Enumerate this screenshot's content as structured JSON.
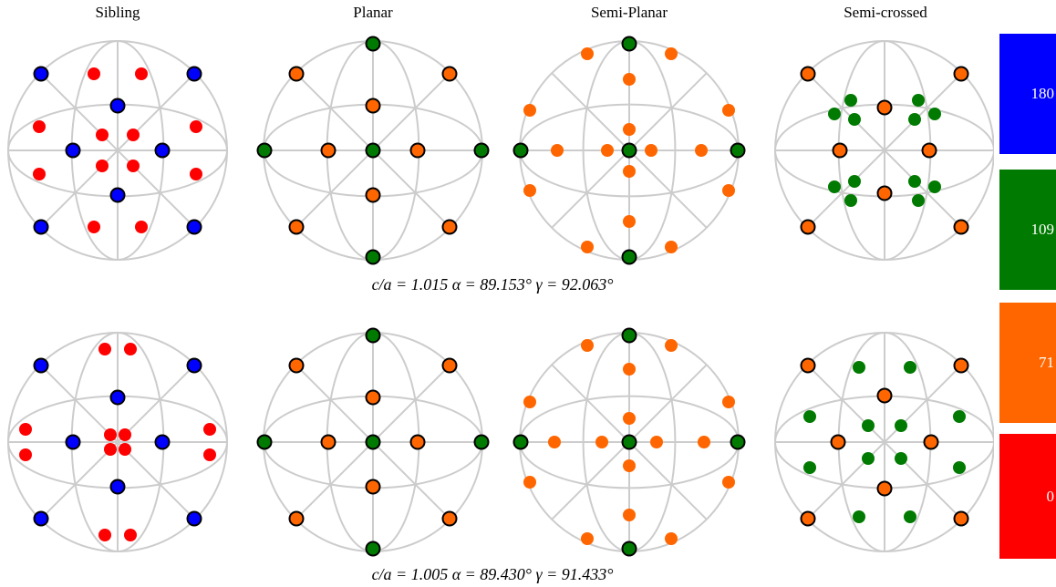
{
  "columns": [
    "Sibling",
    "Planar",
    "Semi-Planar",
    "Semi-crossed"
  ],
  "captions": [
    "c/a = 1.015  α = 89.153°  γ = 92.063°",
    "c/a = 1.005  α = 89.430°  γ = 91.433°"
  ],
  "legend": [
    {
      "label": "180",
      "color": "#0000ff"
    },
    {
      "label": "109",
      "color": "#007a00"
    },
    {
      "label": "71",
      "color": "#ff6600"
    },
    {
      "label": "0",
      "color": "#ff0000"
    }
  ],
  "net_color": "#cccccc",
  "outline_color": "#000000"
}
